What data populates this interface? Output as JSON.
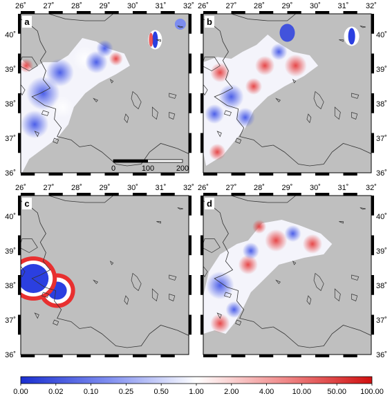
{
  "panels": [
    {
      "label": "a"
    },
    {
      "label": "b"
    },
    {
      "label": "c"
    },
    {
      "label": "d"
    }
  ],
  "lon_ticks": [
    "26˚",
    "27˚",
    "28˚",
    "29˚",
    "30˚",
    "31˚",
    "32˚"
  ],
  "lat_ticks": [
    "36˚",
    "37˚",
    "38˚",
    "39˚",
    "40˚"
  ],
  "scale_bar": {
    "labels": [
      "0",
      "100",
      "200"
    ]
  },
  "colorbar": {
    "labels": [
      "0.00",
      "0.02",
      "0.10",
      "0.25",
      "0.50",
      "1.00",
      "2.00",
      "4.00",
      "10.00",
      "50.00",
      "100.00"
    ],
    "colors": {
      "low": "#1a2fd0",
      "mid": "#ffffff",
      "high": "#e01818"
    }
  },
  "colors": {
    "land": "#bfbfbf",
    "coast": "#333333",
    "blue": "#2b3fe0",
    "red": "#e83030"
  },
  "map_extent": {
    "lon": [
      26,
      32
    ],
    "lat": [
      36,
      40.6
    ]
  }
}
